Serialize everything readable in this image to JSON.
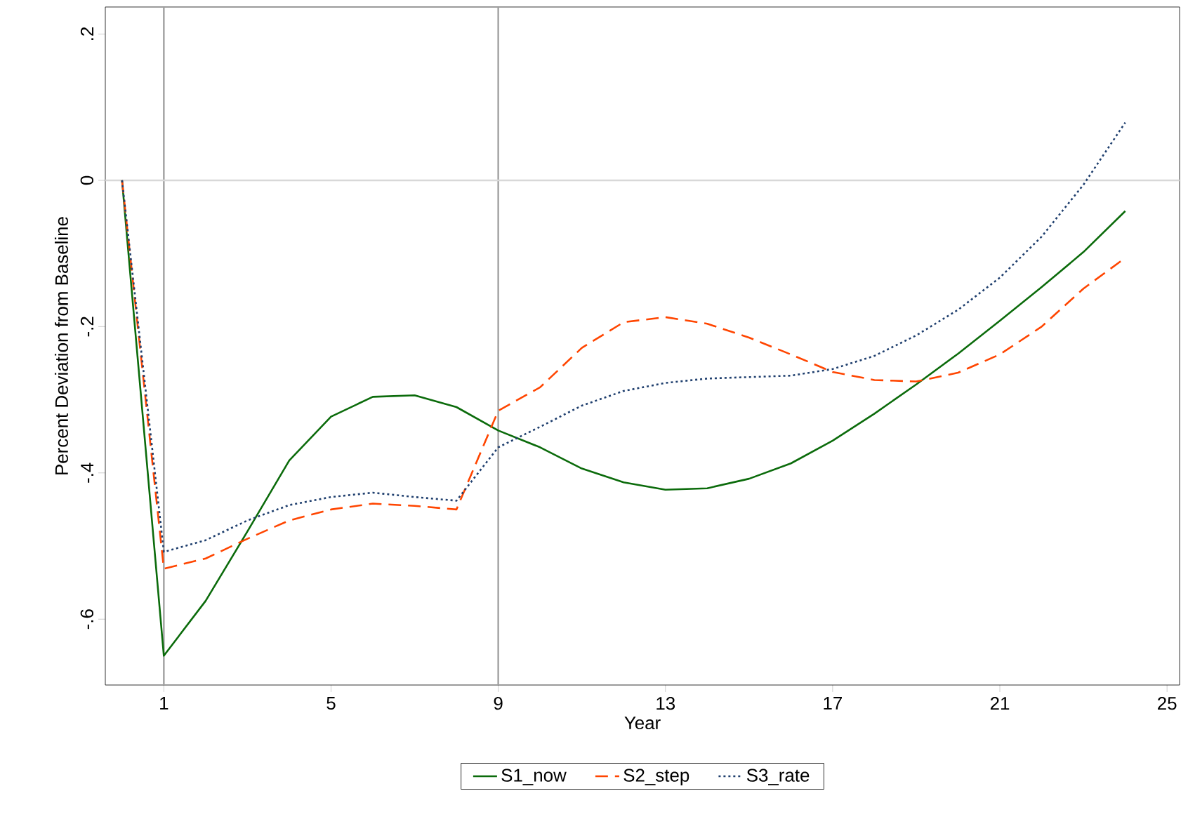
{
  "chart_data": {
    "type": "line",
    "xlabel": "Year",
    "ylabel": "Percent Deviation from Baseline",
    "x": [
      0,
      1,
      2,
      3,
      4,
      5,
      6,
      7,
      8,
      9,
      10,
      11,
      12,
      13,
      14,
      15,
      16,
      17,
      18,
      19,
      20,
      21,
      22,
      23,
      24
    ],
    "series": [
      {
        "name": "S1_now",
        "color": "#0b6b0b",
        "line_style": "solid",
        "values": [
          0,
          -0.65,
          -0.575,
          -0.48,
          -0.383,
          -0.323,
          -0.296,
          -0.294,
          -0.31,
          -0.342,
          -0.365,
          -0.394,
          -0.413,
          -0.423,
          -0.421,
          -0.408,
          -0.387,
          -0.356,
          -0.319,
          -0.279,
          -0.237,
          -0.192,
          -0.146,
          -0.098,
          -0.042
        ]
      },
      {
        "name": "S2_step",
        "color": "#ff4500",
        "line_style": "dashed",
        "values": [
          0,
          -0.531,
          -0.517,
          -0.49,
          -0.465,
          -0.45,
          -0.442,
          -0.445,
          -0.45,
          -0.315,
          -0.283,
          -0.229,
          -0.194,
          -0.187,
          -0.196,
          -0.215,
          -0.238,
          -0.262,
          -0.273,
          -0.275,
          -0.263,
          -0.238,
          -0.2,
          -0.148,
          -0.106
        ]
      },
      {
        "name": "S3_rate",
        "color": "#1f3f6e",
        "line_style": "dotted",
        "values": [
          0,
          -0.508,
          -0.492,
          -0.465,
          -0.444,
          -0.433,
          -0.427,
          -0.433,
          -0.438,
          -0.365,
          -0.337,
          -0.308,
          -0.288,
          -0.277,
          -0.271,
          -0.269,
          -0.267,
          -0.258,
          -0.24,
          -0.212,
          -0.177,
          -0.133,
          -0.077,
          -0.006,
          0.079
        ]
      }
    ],
    "xlim": [
      -0.4,
      25.3
    ],
    "ylim": [
      -0.69,
      0.237
    ],
    "xticks": [
      1,
      5,
      9,
      13,
      17,
      21,
      25
    ],
    "yticks": [
      {
        "value": 0.2,
        "label": ".2"
      },
      {
        "value": 0,
        "label": "0"
      },
      {
        "value": -0.2,
        "label": "-.2"
      },
      {
        "value": -0.4,
        "label": "-.4"
      },
      {
        "value": -0.6,
        "label": "-.6"
      }
    ],
    "ref_lines": [
      {
        "axis": "x",
        "value": 1,
        "color": "#a0a0a0"
      },
      {
        "axis": "x",
        "value": 9,
        "color": "#a0a0a0"
      },
      {
        "axis": "y",
        "value": 0,
        "color": "#d8d8d8"
      }
    ],
    "legend": "bottom",
    "marker": "none"
  }
}
